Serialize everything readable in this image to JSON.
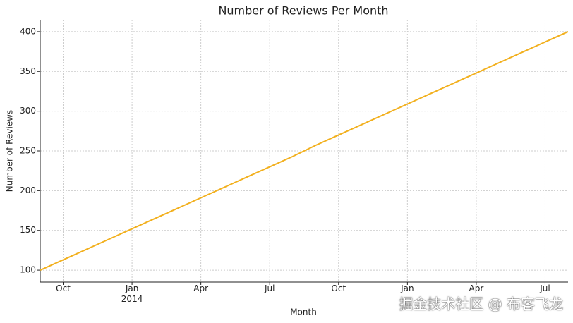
{
  "chart_data": {
    "type": "line",
    "title": "Number of Reviews Per Month",
    "x_label": "Month",
    "y_label": "Number of Reviews",
    "x": [
      "2013-09",
      "2013-10",
      "2013-11",
      "2013-12",
      "2014-01",
      "2014-02",
      "2014-03",
      "2014-04",
      "2014-05",
      "2014-06",
      "2014-07",
      "2014-08",
      "2014-09",
      "2014-10",
      "2014-11",
      "2014-12",
      "2015-01",
      "2015-02",
      "2015-03",
      "2015-04",
      "2015-05",
      "2015-06",
      "2015-07",
      "2015-08"
    ],
    "series": [
      {
        "name": "Number of Reviews",
        "color": "#f2b01e",
        "values": [
          100,
          113,
          126,
          139,
          152,
          165,
          178,
          191,
          204,
          217,
          230,
          243,
          257,
          270,
          283,
          296,
          309,
          322,
          335,
          348,
          361,
          374,
          387,
          400
        ]
      }
    ],
    "xlim": [
      "2013-09",
      "2015-08"
    ],
    "xticks": [
      {
        "value": "2013-10",
        "label": "Oct"
      },
      {
        "value": "2014-01",
        "label": "Jan\n2014"
      },
      {
        "value": "2014-04",
        "label": "Apr"
      },
      {
        "value": "2014-07",
        "label": "Jul"
      },
      {
        "value": "2014-10",
        "label": "Oct"
      },
      {
        "value": "2015-01",
        "label": "Jan"
      },
      {
        "value": "2015-04",
        "label": "Apr"
      },
      {
        "value": "2015-07",
        "label": "Jul"
      }
    ],
    "ylim": [
      85,
      415
    ],
    "yticks": [
      100,
      150,
      200,
      250,
      300,
      350,
      400
    ],
    "grid": true,
    "watermark": "掘金技术社区 @ 布客飞龙"
  }
}
